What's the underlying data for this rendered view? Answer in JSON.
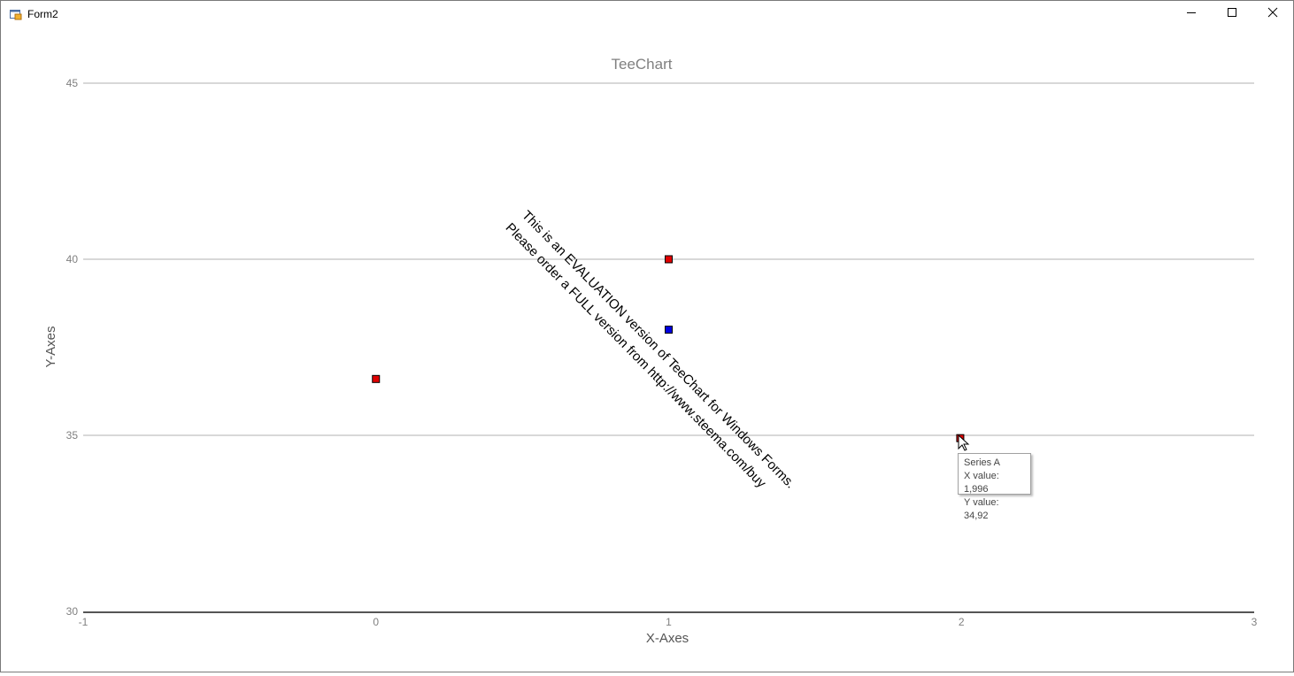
{
  "window": {
    "title": "Form2"
  },
  "icons": {
    "app": "form-app-icon",
    "minimize": "minimize-icon",
    "maximize": "maximize-icon",
    "close": "close-icon",
    "cursor": "mouse-pointer-icon"
  },
  "watermark": {
    "line1": "This is an EVALUATION version of TeeChart for Windows Forms.",
    "line2": "Please order a FULL version from http://www.steema.com/buy"
  },
  "tooltip": {
    "series": "Series A",
    "x_line": "X value: 1,996",
    "y_line": "Y value: 34,92"
  },
  "colors": {
    "series_a": "#e00000",
    "series_b": "#0000e0",
    "axis": "#555555",
    "grid": "#b0b0b0",
    "label": "#808080"
  },
  "chart_data": {
    "type": "scatter",
    "title": "TeeChart",
    "xlabel": "X-Axes",
    "ylabel": "Y-Axes",
    "xlim": [
      -1,
      3
    ],
    "ylim": [
      30,
      45
    ],
    "xticks": [
      "-1",
      "0",
      "1",
      "2",
      "3"
    ],
    "yticks": [
      "30",
      "35",
      "40",
      "45"
    ],
    "grid": true,
    "series": [
      {
        "name": "Series A",
        "color": "#e00000",
        "points": [
          {
            "x": 0,
            "y": 36.6
          },
          {
            "x": 1,
            "y": 40
          },
          {
            "x": 1.996,
            "y": 34.92
          }
        ]
      },
      {
        "color": "#0000e0",
        "points": [
          {
            "x": 1,
            "y": 38
          }
        ]
      }
    ]
  }
}
